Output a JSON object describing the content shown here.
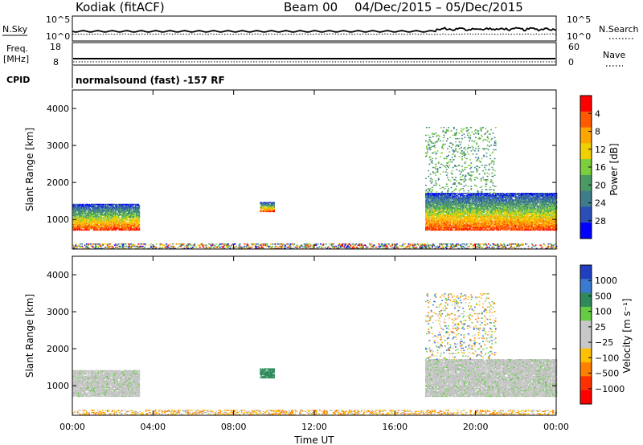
{
  "header": {
    "station": "Kodiak (fitACF)",
    "beam": "Beam 00",
    "dates": "04/Dec/2015 – 05/Dec/2015"
  },
  "top_panels": {
    "nsky_label": "N.Sky",
    "nsearch_label": "N.Search",
    "nsky_ticks": [
      "10^5",
      "10^0"
    ],
    "nsearch_ticks": [
      "10^5",
      "10^0"
    ],
    "freq_label_1": "Freq.",
    "freq_label_2": "[MHz]",
    "freq_ticks": [
      "18",
      "8"
    ],
    "nave_label": "Nave",
    "nave_ticks": [
      "60",
      "0"
    ],
    "cpid_label": "CPID",
    "cpid_text": "normalsound (fast) -157 RF"
  },
  "colors": {
    "power_scale": [
      "#0000ff",
      "#2a4fb8",
      "#3d7c8a",
      "#4a9a64",
      "#7ccf3c",
      "#f0d000",
      "#ffa500",
      "#ff5a00",
      "#ff0000"
    ],
    "velocity_scale": [
      "#2040c0",
      "#3a7ad0",
      "#2e8a5a",
      "#66cc44",
      "#c8c8c8",
      "#c8c8c8",
      "#ffc000",
      "#ff8000",
      "#ff3000",
      "#ff0000"
    ],
    "ground_scatter": "#c4c4c4"
  },
  "chart_data": [
    {
      "type": "heatmap",
      "name": "power",
      "ylabel": "Slant Range [km]",
      "ylim": [
        200,
        4500
      ],
      "yticks": [
        1000,
        2000,
        3000,
        4000
      ],
      "xlim": [
        0,
        24
      ],
      "xticks": [
        "00:00",
        "04:00",
        "08:00",
        "12:00",
        "16:00",
        "20:00",
        "00:00"
      ],
      "colorbar_label": "Power [dB]",
      "colorbar_ticks": [
        "4",
        "8",
        "12",
        "16",
        "20",
        "24",
        "28"
      ],
      "regions": [
        {
          "t": [
            0.0,
            3.3
          ],
          "r": [
            700,
            1400
          ],
          "level": "high"
        },
        {
          "t": [
            9.3,
            10.0
          ],
          "r": [
            1200,
            1450
          ],
          "level": "mid"
        },
        {
          "t": [
            0.0,
            24.0
          ],
          "r": [
            200,
            350
          ],
          "level": "mixed"
        },
        {
          "t": [
            17.5,
            24.0
          ],
          "r": [
            700,
            1700
          ],
          "level": "high"
        },
        {
          "t": [
            17.5,
            21.0
          ],
          "r": [
            1700,
            3500
          ],
          "level": "sparse"
        }
      ]
    },
    {
      "type": "heatmap",
      "name": "velocity",
      "ylabel": "Slant Range [km]",
      "ylim": [
        200,
        4500
      ],
      "yticks": [
        1000,
        2000,
        3000,
        4000
      ],
      "xlim": [
        0,
        24
      ],
      "xticks": [
        "00:00",
        "04:00",
        "08:00",
        "12:00",
        "16:00",
        "20:00",
        "00:00"
      ],
      "xlabel": "Time UT",
      "colorbar_label": "Velocity [m s⁻¹]",
      "colorbar_ticks": [
        "1000",
        "500",
        "100",
        "25",
        "−25",
        "−100",
        "−500",
        "−1000"
      ],
      "regions": [
        {
          "t": [
            0.0,
            3.3
          ],
          "r": [
            700,
            1400
          ],
          "level": "ground"
        },
        {
          "t": [
            9.3,
            10.0
          ],
          "r": [
            1200,
            1450
          ],
          "level": "low"
        },
        {
          "t": [
            0.0,
            24.0
          ],
          "r": [
            200,
            350
          ],
          "level": "mixed"
        },
        {
          "t": [
            17.5,
            24.0
          ],
          "r": [
            700,
            1700
          ],
          "level": "ground"
        },
        {
          "t": [
            17.5,
            21.0
          ],
          "r": [
            1700,
            3500
          ],
          "level": "sparse"
        }
      ]
    }
  ]
}
